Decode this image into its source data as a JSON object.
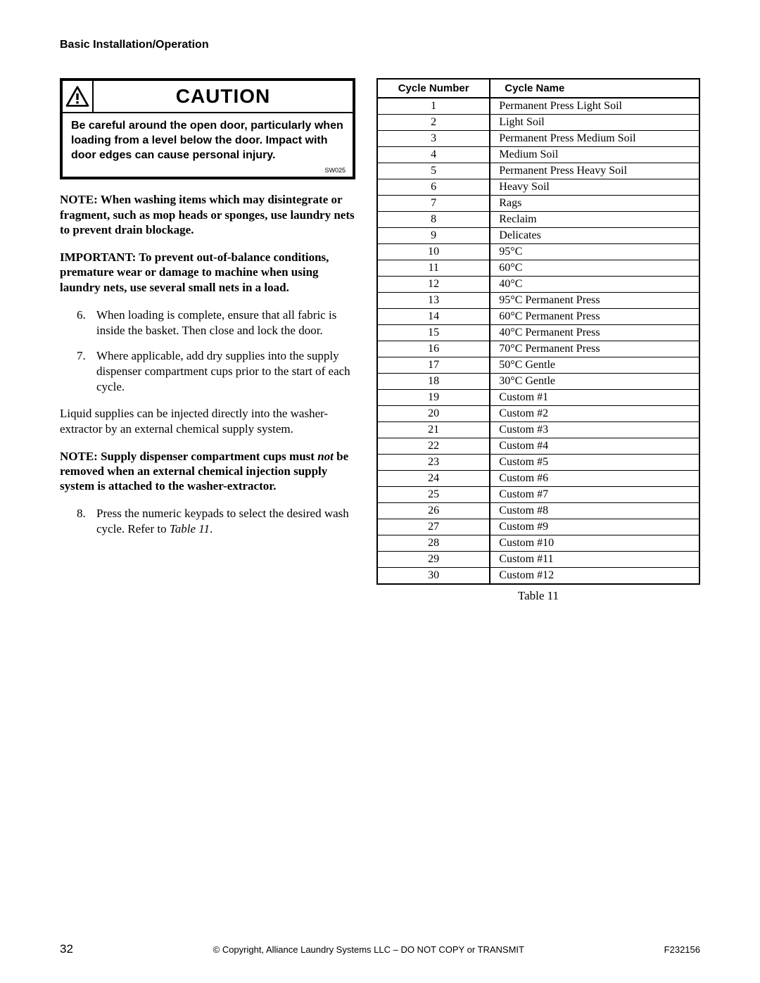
{
  "header": "Basic Installation/Operation",
  "caution": {
    "title": "CAUTION",
    "body": "Be careful around the open door, particularly when loading from a level below the door. Impact with door edges can cause personal injury.",
    "code": "SW025"
  },
  "notes": {
    "note1": "NOTE: When washing items which may disintegrate or fragment, such as mop heads or sponges, use laundry nets to prevent drain blockage.",
    "important": "IMPORTANT: To prevent out-of-balance conditions, premature wear or damage to machine when using laundry nets, use several small nets in a load.",
    "note2_prefix": "NOTE: Supply dispenser compartment cups must ",
    "note2_italic": "not",
    "note2_suffix": " be removed when an external chemical injection supply system is attached to the washer-extractor."
  },
  "steps": {
    "s6": {
      "num": "6.",
      "text": "When loading is complete, ensure that all fabric is inside the basket. Then close and lock the door."
    },
    "s7": {
      "num": "7.",
      "text": "Where applicable, add dry supplies into the supply dispenser compartment cups prior to the start of each cycle."
    },
    "s8": {
      "num": "8.",
      "text_prefix": "Press the numeric keypads to select the desired wash cycle. Refer to ",
      "ref": "Table 11",
      "suffix": "."
    }
  },
  "body": {
    "liquid": "Liquid supplies can be injected directly into the washer-extractor by an external chemical supply system."
  },
  "table": {
    "headers": {
      "col1": "Cycle Number",
      "col2": "Cycle Name"
    },
    "rows": [
      [
        "1",
        "Permanent Press Light Soil"
      ],
      [
        "2",
        "Light Soil"
      ],
      [
        "3",
        "Permanent Press Medium Soil"
      ],
      [
        "4",
        "Medium Soil"
      ],
      [
        "5",
        "Permanent Press Heavy Soil"
      ],
      [
        "6",
        "Heavy Soil"
      ],
      [
        "7",
        "Rags"
      ],
      [
        "8",
        "Reclaim"
      ],
      [
        "9",
        "Delicates"
      ],
      [
        "10",
        "95°C"
      ],
      [
        "11",
        "60°C"
      ],
      [
        "12",
        "40°C"
      ],
      [
        "13",
        "95°C Permanent Press"
      ],
      [
        "14",
        "60°C Permanent Press"
      ],
      [
        "15",
        "40°C Permanent Press"
      ],
      [
        "16",
        "70°C Permanent Press"
      ],
      [
        "17",
        "50°C Gentle"
      ],
      [
        "18",
        "30°C Gentle"
      ],
      [
        "19",
        "Custom #1"
      ],
      [
        "20",
        "Custom #2"
      ],
      [
        "21",
        "Custom #3"
      ],
      [
        "22",
        "Custom #4"
      ],
      [
        "23",
        "Custom #5"
      ],
      [
        "24",
        "Custom #6"
      ],
      [
        "25",
        "Custom #7"
      ],
      [
        "26",
        "Custom #8"
      ],
      [
        "27",
        "Custom #9"
      ],
      [
        "28",
        "Custom #10"
      ],
      [
        "29",
        "Custom #11"
      ],
      [
        "30",
        "Custom #12"
      ]
    ],
    "caption": "Table 11"
  },
  "footer": {
    "page": "32",
    "copyright": "© Copyright, Alliance Laundry Systems LLC – DO NOT COPY or TRANSMIT",
    "docnum": "F232156"
  }
}
